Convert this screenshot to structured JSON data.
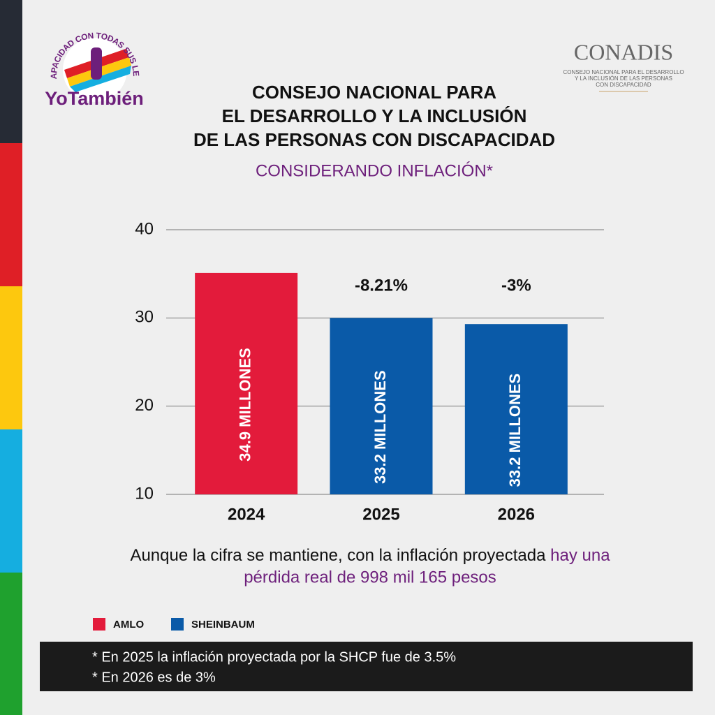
{
  "header": {
    "logo_text": "YoTambién",
    "logo_arc": "DISCAPACIDAD CON TODAS SUS LETRAS",
    "org": "CONADIS",
    "org_lines": [
      "CONSEJO NACIONAL PARA EL DESARROLLO",
      "Y LA INCLUSIÓN DE LAS PERSONAS",
      "CON DISCAPACIDAD"
    ]
  },
  "chart_data": {
    "type": "bar",
    "title": [
      "CONSEJO NACIONAL PARA",
      "EL DESARROLLO Y LA INCLUSIÓN",
      "DE LAS PERSONAS CON DISCAPACIDAD"
    ],
    "subtitle": "CONSIDERANDO INFLACIÓN*",
    "categories": [
      "2024",
      "2025",
      "2026"
    ],
    "series": [
      {
        "name": "AMLO",
        "color": "#e31b3b",
        "values": [
          35.1,
          null,
          null
        ]
      },
      {
        "name": "SHEINBAUM",
        "color": "#0a5aa8",
        "values": [
          null,
          30.0,
          29.3
        ]
      }
    ],
    "bar_annotations": [
      "34.9 MILLONES",
      "33.2 MILLONES",
      "33.2 MILLONES"
    ],
    "change_annotations": [
      "-8.21%",
      "-3%"
    ],
    "ylim": [
      10,
      40
    ],
    "yticks": [
      10,
      20,
      30,
      40
    ],
    "grid": true
  },
  "caption": {
    "text": "Aunque la cifra se mantiene, con la inflación proyectada",
    "highlight": [
      "hay una",
      "pérdida real de 998 mil 165 pesos"
    ]
  },
  "footnotes": [
    "* En 2025 la inflación proyectada por la SHCP fue de 3.5%",
    "* En 2026 es de 3%"
  ]
}
